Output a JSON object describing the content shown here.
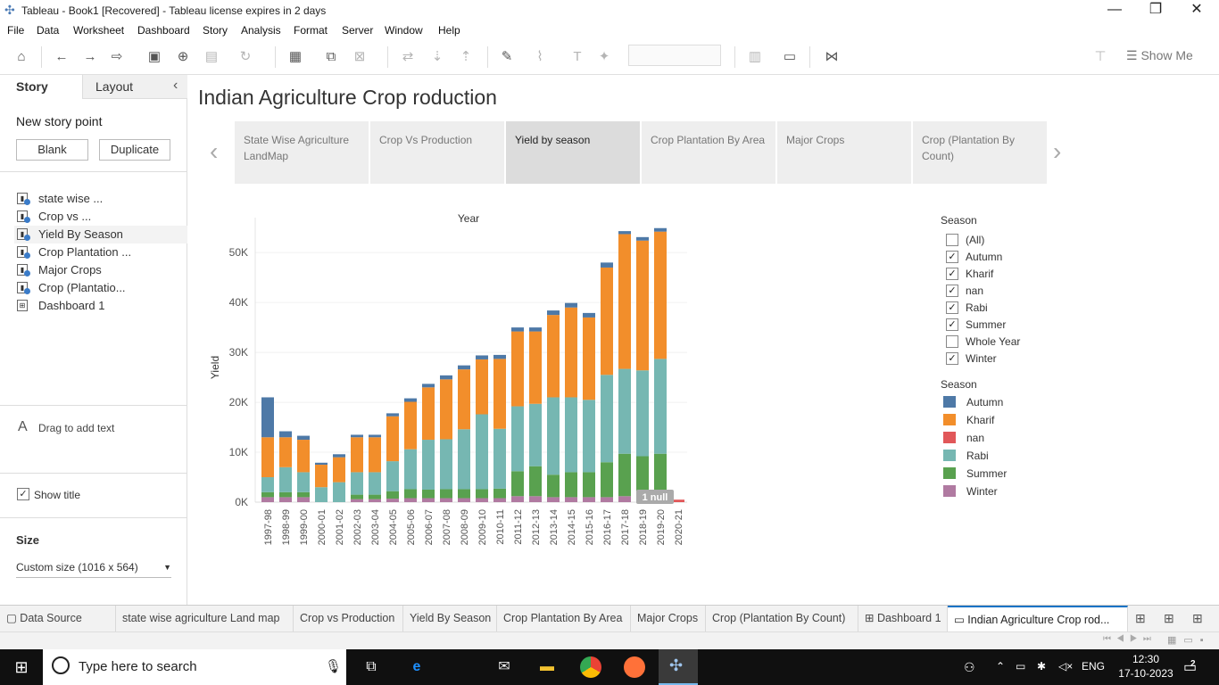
{
  "window": {
    "title": "Tableau - Book1 [Recovered] - Tableau license expires in 2 days",
    "minimize": "—",
    "restore": "❐",
    "close": "✕"
  },
  "menu": [
    "File",
    "Data",
    "Worksheet",
    "Dashboard",
    "Story",
    "Analysis",
    "Format",
    "Server",
    "Window",
    "Help"
  ],
  "toolbar": {
    "show_me": "Show Me"
  },
  "left_pane": {
    "tab_story": "Story",
    "tab_layout": "Layout",
    "collapse": "‹",
    "new_story_point": "New story point",
    "blank_button": "Blank",
    "duplicate_button": "Duplicate",
    "sheets": [
      {
        "label": "state wise ...",
        "type": "sheet"
      },
      {
        "label": "Crop vs ...",
        "type": "sheet"
      },
      {
        "label": "Yield By Season",
        "type": "sheet"
      },
      {
        "label": "Crop Plantation ...",
        "type": "sheet"
      },
      {
        "label": "Major Crops",
        "type": "sheet"
      },
      {
        "label": "Crop (Plantatio...",
        "type": "sheet"
      },
      {
        "label": "Dashboard 1",
        "type": "dashboard"
      }
    ],
    "drag_text": "Drag to add text",
    "show_title_label": "Show title",
    "show_title_checked": true,
    "size_heading": "Size",
    "size_value": "Custom size (1016 x 564)"
  },
  "story": {
    "title": "Indian Agriculture Crop roduction",
    "points": [
      {
        "label": "State Wise Agriculture LandMap",
        "active": false
      },
      {
        "label": "Crop Vs Production",
        "active": false
      },
      {
        "label": "Yield by season",
        "active": true
      },
      {
        "label": "Crop Plantation By Area",
        "active": false
      },
      {
        "label": "Major Crops",
        "active": false
      },
      {
        "label": "Crop (Plantation By Count)",
        "active": false
      }
    ]
  },
  "filter": {
    "title": "Season",
    "items": [
      {
        "label": "(All)",
        "checked": false
      },
      {
        "label": "Autumn",
        "checked": true
      },
      {
        "label": "Kharif",
        "checked": true
      },
      {
        "label": "nan",
        "checked": true
      },
      {
        "label": "Rabi",
        "checked": true
      },
      {
        "label": "Summer",
        "checked": true
      },
      {
        "label": "Whole Year",
        "checked": false
      },
      {
        "label": "Winter",
        "checked": true
      }
    ]
  },
  "color_legend": {
    "title": "Season",
    "items": [
      {
        "label": "Autumn",
        "color": "#4e79a7"
      },
      {
        "label": "Kharif",
        "color": "#f28e2b"
      },
      {
        "label": "nan",
        "color": "#e15759"
      },
      {
        "label": "Rabi",
        "color": "#76b7b2"
      },
      {
        "label": "Summer",
        "color": "#59a14f"
      },
      {
        "label": "Winter",
        "color": "#b07aa1"
      }
    ]
  },
  "chart_data": {
    "type": "bar",
    "stacked": true,
    "title": "Year",
    "ylabel": "Yield",
    "ylim": [
      0,
      57000
    ],
    "yticks": [
      "0K",
      "10K",
      "20K",
      "30K",
      "40K",
      "50K"
    ],
    "ytick_values": [
      0,
      10000,
      20000,
      30000,
      40000,
      50000
    ],
    "categories": [
      "1997-98",
      "1998-99",
      "1999-00",
      "2000-01",
      "2001-02",
      "2002-03",
      "2003-04",
      "2004-05",
      "2005-06",
      "2006-07",
      "2007-08",
      "2008-09",
      "2009-10",
      "2010-11",
      "2011-12",
      "2012-13",
      "2013-14",
      "2014-15",
      "2015-16",
      "2016-17",
      "2017-18",
      "2018-19",
      "2019-20",
      "2020-21"
    ],
    "series": [
      {
        "name": "Winter",
        "values": [
          1000,
          1000,
          1000,
          0,
          0,
          600,
          600,
          700,
          800,
          800,
          800,
          800,
          800,
          800,
          1200,
          1200,
          1000,
          1000,
          1000,
          1000,
          1200,
          1200,
          1200,
          0
        ]
      },
      {
        "name": "Summer",
        "values": [
          1000,
          1000,
          1000,
          0,
          0,
          900,
          900,
          1500,
          1800,
          1700,
          1800,
          1800,
          1800,
          1900,
          5000,
          6000,
          4500,
          5000,
          5000,
          7000,
          8500,
          8000,
          8500,
          0
        ]
      },
      {
        "name": "Rabi",
        "values": [
          3000,
          5000,
          4000,
          3000,
          4000,
          4500,
          4500,
          6000,
          8000,
          10000,
          10000,
          12000,
          15000,
          12000,
          13000,
          12500,
          15500,
          15000,
          14500,
          17500,
          17000,
          17200,
          19000,
          0
        ]
      },
      {
        "name": "Kharif",
        "values": [
          8000,
          6000,
          6500,
          4500,
          5000,
          7000,
          7000,
          9000,
          9500,
          10500,
          12000,
          12000,
          11000,
          14000,
          15000,
          14500,
          16500,
          18000,
          16500,
          21500,
          27000,
          26000,
          25500,
          0
        ]
      },
      {
        "name": "Autumn",
        "values": [
          8000,
          1200,
          800,
          400,
          600,
          500,
          500,
          600,
          700,
          700,
          800,
          800,
          800,
          800,
          800,
          800,
          900,
          900,
          900,
          1000,
          600,
          700,
          700,
          0
        ]
      },
      {
        "name": "nan",
        "values": [
          0,
          0,
          0,
          0,
          0,
          0,
          0,
          0,
          0,
          0,
          0,
          0,
          0,
          0,
          0,
          0,
          0,
          0,
          0,
          0,
          0,
          0,
          0,
          500
        ]
      }
    ],
    "null_indicator": "1 null"
  },
  "bottom_tabs": [
    {
      "label": "Data Source",
      "icon": "datasource-icon",
      "active": false
    },
    {
      "label": "state wise agriculture Land map",
      "icon": "",
      "active": false
    },
    {
      "label": "Crop vs Production",
      "icon": "",
      "active": false
    },
    {
      "label": "Yield By Season",
      "icon": "",
      "active": false
    },
    {
      "label": "Crop Plantation By Area",
      "icon": "",
      "active": false
    },
    {
      "label": "Major Crops",
      "icon": "",
      "active": false
    },
    {
      "label": "Crop (Plantation By Count)",
      "icon": "",
      "active": false
    },
    {
      "label": "Dashboard 1",
      "icon": "dashboard-icon",
      "active": false
    },
    {
      "label": "Indian Agriculture Crop rod...",
      "icon": "story-icon",
      "active": true
    }
  ],
  "taskbar": {
    "search_placeholder": "Type here to search",
    "language": "ENG",
    "time": "12:30",
    "date": "17-10-2023",
    "notification_count": "2"
  }
}
